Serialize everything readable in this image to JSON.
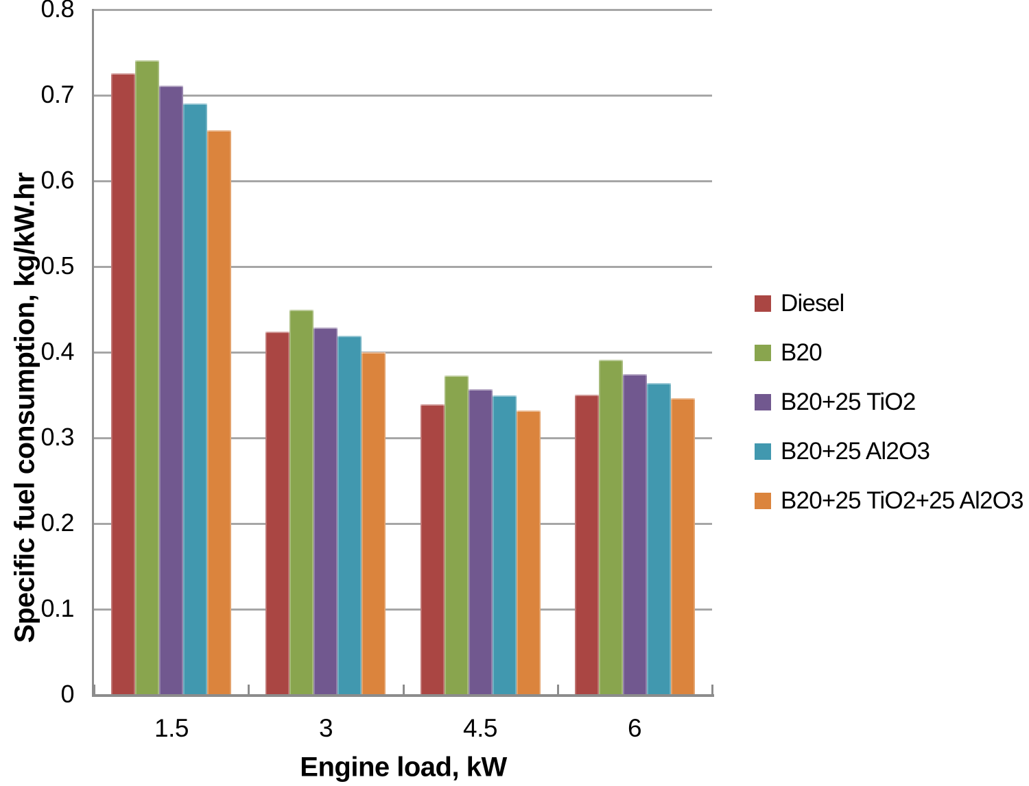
{
  "chart_data": {
    "type": "bar",
    "title": "",
    "xlabel": "Engine load, kW",
    "ylabel": "Specific fuel consumption, kg/kW.hr",
    "categories": [
      "1.5",
      "3",
      "4.5",
      "6"
    ],
    "series": [
      {
        "name": "Diesel",
        "color": "#AA4643",
        "values": [
          0.725,
          0.423,
          0.338,
          0.35
        ]
      },
      {
        "name": "B20",
        "color": "#89A54E",
        "values": [
          0.74,
          0.449,
          0.372,
          0.39
        ]
      },
      {
        "name": "B20+25 TiO2",
        "color": "#71588F",
        "values": [
          0.71,
          0.428,
          0.356,
          0.374
        ]
      },
      {
        "name": "B20+25 Al2O3",
        "color": "#4198AF",
        "values": [
          0.69,
          0.418,
          0.349,
          0.363
        ]
      },
      {
        "name": "B20+25 TiO2+25 Al2O3",
        "color": "#DB843D",
        "values": [
          0.658,
          0.399,
          0.331,
          0.346
        ]
      }
    ],
    "ylim": [
      0,
      0.8
    ],
    "ytick_step": 0.1,
    "ytick_labels": [
      "0",
      "0.1",
      "0.2",
      "0.3",
      "0.4",
      "0.5",
      "0.6",
      "0.7",
      "0.8"
    ],
    "grid": true,
    "gridline_color": "#a6a6a6",
    "axis_color": "#8c8c8c",
    "legend_position": "right"
  }
}
